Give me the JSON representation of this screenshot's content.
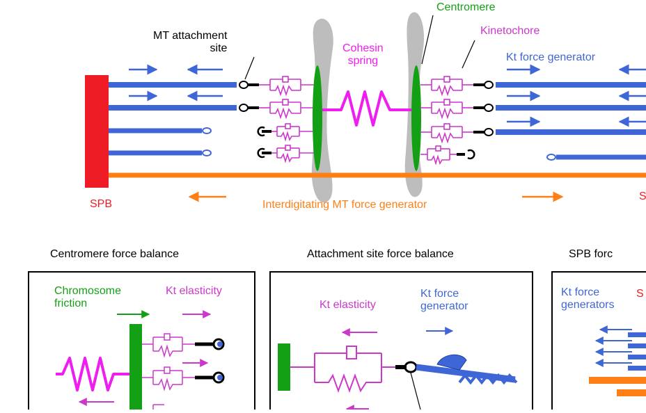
{
  "colors": {
    "mt_blue": "#3f66d6",
    "spb_red": "#ee1c24",
    "interdigitating_orange": "#ff7f17",
    "centromere_green": "#14a014",
    "kinetochore_magenta": "#cc37cc",
    "cohesin_magenta": "#f01cf0",
    "chromatin_gray": "#bdbdbd"
  },
  "top": {
    "mt_attachment_site": "MT attachment\nsite",
    "centromere": "Centromere",
    "kinetochore": "Kinetochore",
    "cohesin_spring": "Cohesin\nspring",
    "kt_force_generator": "Kt force generator",
    "spb_left": "SPB",
    "spb_right": "S",
    "interdigitating": "Interdigitating MT force generator"
  },
  "panels": [
    {
      "title": "Centromere force balance",
      "labels": {
        "chromosome_friction": "Chromosome\nfriction",
        "kt_elasticity": "Kt elasticity"
      }
    },
    {
      "title": "Attachment site force balance",
      "labels": {
        "kt_elasticity": "Kt elasticity",
        "kt_force_generator": "Kt force\ngenerator"
      }
    },
    {
      "title": "SPB forc",
      "labels": {
        "kt_force_generators": "Kt force\ngenerators",
        "spb_cut": "S"
      }
    }
  ]
}
